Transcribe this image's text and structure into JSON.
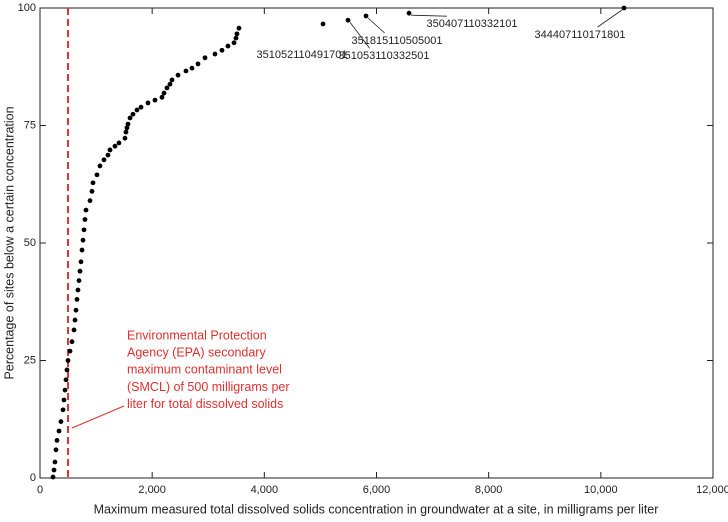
{
  "chart_data": {
    "type": "scatter",
    "x_label": "Maximum measured total dissolved solids concentration in groundwater at a site, in milligrams per liter",
    "y_label": "Percentage of sites below a certain concentration",
    "xlim": [
      0,
      12000
    ],
    "xticks": [
      0,
      {
        "value": 2000,
        "label": "2,000"
      },
      {
        "value": 4000,
        "label": "4,000"
      },
      {
        "value": 6000,
        "label": "6,000"
      },
      {
        "value": 8000,
        "label": "8,000"
      },
      {
        "value": 10000,
        "label": "10,000"
      },
      {
        "value": 12000,
        "label": "12,000"
      }
    ],
    "ylim": [
      0,
      100
    ],
    "yticks": [
      0,
      25,
      50,
      75,
      100
    ],
    "color": "#000000",
    "x": [
      232,
      250,
      267,
      285,
      303,
      339,
      374,
      410,
      428,
      446,
      464,
      481,
      499,
      535,
      570,
      606,
      624,
      642,
      660,
      677,
      695,
      713,
      731,
      749,
      767,
      785,
      802,
      820,
      892,
      927,
      945,
      1016,
      1070,
      1141,
      1212,
      1248,
      1337,
      1408,
      1515,
      1533,
      1551,
      1569,
      1605,
      1658,
      1729,
      1801,
      1925,
      2050,
      2175,
      2211,
      2264,
      2318,
      2354,
      2461,
      2603,
      2710,
      2817,
      2942,
      3120,
      3245,
      3352,
      3459,
      3494,
      3512,
      3548,
      5046,
      5492,
      5813,
      6580,
      10413
    ],
    "values": [
      0.2,
      1.7,
      3.4,
      6,
      8,
      10,
      12,
      14.5,
      16.6,
      18.7,
      20.9,
      23,
      25,
      27,
      29,
      31.5,
      33.6,
      35.7,
      38,
      40,
      42,
      44,
      46,
      48.5,
      50.6,
      52.8,
      55,
      57,
      59,
      61,
      62.8,
      64.5,
      66.4,
      67.7,
      68.7,
      69.8,
      70.6,
      71.3,
      72.3,
      73.6,
      74.5,
      75.3,
      76.6,
      77.4,
      78.3,
      78.9,
      79.8,
      80.4,
      81,
      81.9,
      83,
      83.8,
      84.7,
      85.7,
      86.6,
      87.2,
      88.1,
      89.4,
      90.2,
      91,
      91.9,
      92.6,
      93.6,
      94.5,
      95.7,
      96.6,
      97.4,
      98.3,
      98.9,
      100
    ],
    "point_labels": [
      null,
      null,
      null,
      null,
      null,
      null,
      null,
      null,
      null,
      null,
      null,
      null,
      null,
      null,
      null,
      null,
      null,
      null,
      null,
      null,
      null,
      null,
      null,
      null,
      null,
      null,
      null,
      null,
      null,
      null,
      null,
      null,
      null,
      null,
      null,
      null,
      null,
      null,
      null,
      null,
      null,
      null,
      null,
      null,
      null,
      null,
      null,
      null,
      null,
      null,
      null,
      null,
      null,
      null,
      null,
      null,
      null,
      null,
      null,
      null,
      null,
      null,
      null,
      null,
      null,
      "351052110491701",
      "351053110332501",
      "351815110505001",
      "350407110332101",
      "344407110171801"
    ],
    "reference_line": {
      "x": 500,
      "color": "#e03030",
      "label_lines": [
        "Environmental Protection",
        "Agency (EPA) secondary",
        "maximum contaminant level",
        "(SMCL) of 500 milligrams per",
        "liter for total dissolved solids"
      ]
    }
  }
}
